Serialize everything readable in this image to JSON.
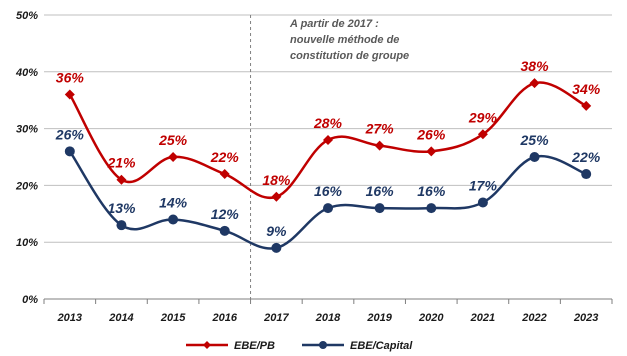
{
  "chart_data": {
    "type": "line",
    "title": "",
    "xlabel": "",
    "ylabel": "",
    "categories": [
      "2013",
      "2014",
      "2015",
      "2016",
      "2017",
      "2018",
      "2019",
      "2020",
      "2021",
      "2022",
      "2023"
    ],
    "ylim": [
      0,
      50
    ],
    "yticks": [
      0,
      10,
      20,
      30,
      40,
      50
    ],
    "ytick_labels": [
      "0%",
      "10%",
      "20%",
      "30%",
      "40%",
      "50%"
    ],
    "grid": "horizontal",
    "legend_position": "bottom",
    "series": [
      {
        "name": "EBE/PB",
        "color": "#c00000",
        "marker": "diamond",
        "values": [
          36,
          21,
          25,
          22,
          18,
          28,
          27,
          26,
          29,
          38,
          34
        ],
        "labels": [
          "36%",
          "21%",
          "25%",
          "22%",
          "18%",
          "28%",
          "27%",
          "26%",
          "29%",
          "38%",
          "34%"
        ]
      },
      {
        "name": "EBE/Capital",
        "color": "#1f3864",
        "marker": "circle",
        "values": [
          26,
          13,
          14,
          12,
          9,
          16,
          16,
          16,
          17,
          25,
          22
        ],
        "labels": [
          "26%",
          "13%",
          "14%",
          "12%",
          "9%",
          "16%",
          "16%",
          "16%",
          "17%",
          "25%",
          "22%"
        ]
      }
    ],
    "annotation": {
      "lines": [
        "A partir de 2017 :",
        "nouvelle méthode de",
        "constitution de groupe"
      ]
    }
  }
}
